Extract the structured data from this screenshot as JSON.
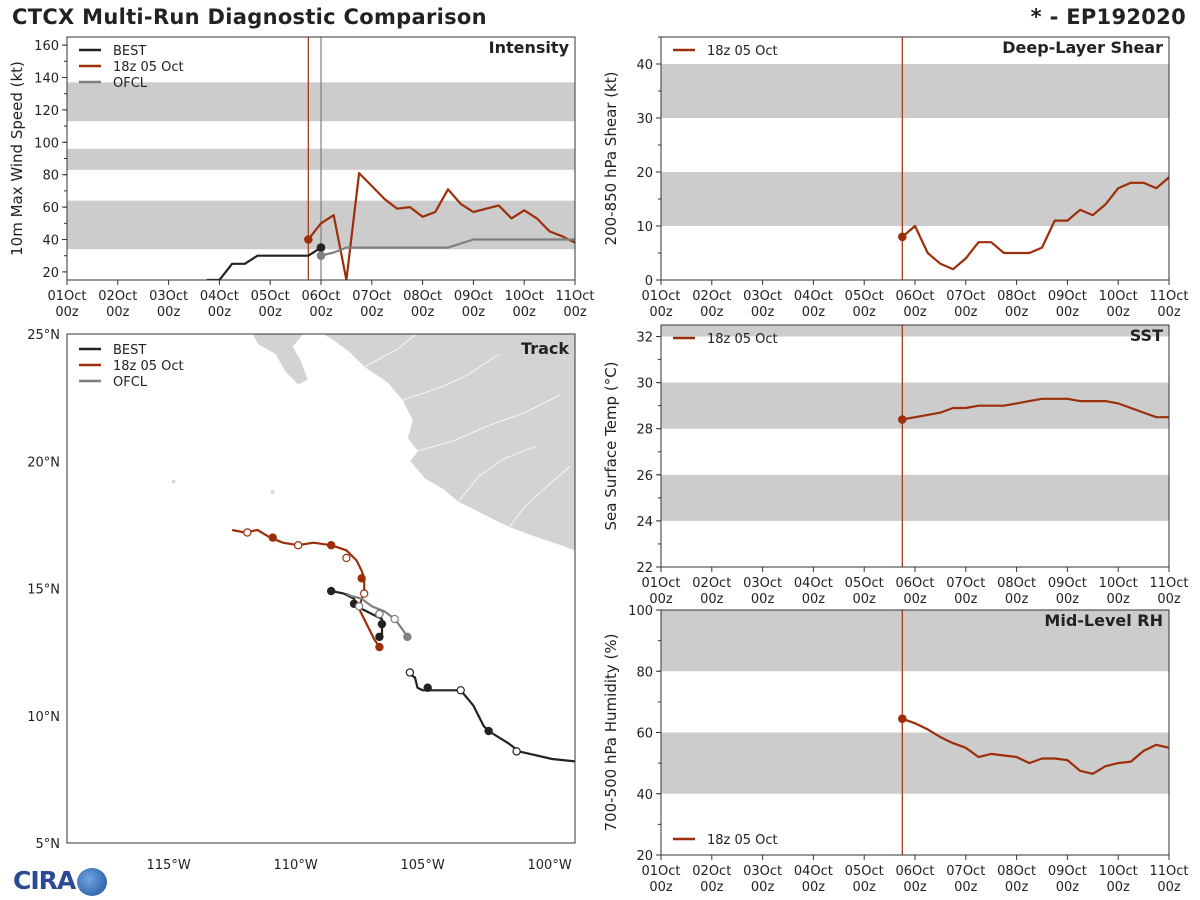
{
  "title": "CTCX Multi-Run Diagnostic Comparison",
  "storm_id": "* - EP192020",
  "logo_text": "CIRA",
  "colors": {
    "best": "#222222",
    "run": "#9c2f0a",
    "ofcl": "#7f7f7f",
    "band": "#cccccc",
    "land": "#d3d3d3"
  },
  "chart_data": [
    {
      "id": "intensity",
      "type": "line",
      "title": "Intensity",
      "ylabel": "10m Max Wind Speed (kt)",
      "xlim": [
        0,
        10
      ],
      "ylim": [
        15,
        165
      ],
      "yticks": [
        20,
        40,
        60,
        80,
        100,
        120,
        140,
        160
      ],
      "bands": [
        [
          34,
          64
        ],
        [
          83,
          96
        ],
        [
          113,
          137
        ]
      ],
      "vlines": [
        {
          "x": 4.75,
          "series": "run"
        },
        {
          "x": 5.0,
          "series": "ofcl"
        }
      ],
      "legend": [
        "BEST",
        "18z 05 Oct",
        "OFCL"
      ],
      "series": [
        {
          "name": "BEST",
          "key": "best",
          "x": [
            2.75,
            3.0,
            3.25,
            3.5,
            3.75,
            4.0,
            4.25,
            4.5,
            4.75,
            5.0
          ],
          "y": [
            15,
            15,
            25,
            25,
            30,
            30,
            30,
            30,
            30,
            35
          ],
          "markers": [
            {
              "x": 5.0,
              "y": 35,
              "style": "filled"
            }
          ]
        },
        {
          "name": "18z 05 Oct",
          "key": "run",
          "x": [
            4.75,
            5.0,
            5.25,
            5.5,
            5.75,
            6.0,
            6.25,
            6.5,
            6.75,
            7.0,
            7.25,
            7.5,
            7.75,
            8.0,
            8.25,
            8.5,
            8.75,
            9.0,
            9.25,
            9.5,
            9.75,
            10.0
          ],
          "y": [
            40,
            50,
            55,
            15,
            81,
            73,
            65,
            59,
            60,
            54,
            57,
            71,
            62,
            57,
            59,
            61,
            53,
            58,
            53,
            45,
            42,
            38
          ],
          "markers": [
            {
              "x": 4.75,
              "y": 40,
              "style": "filled"
            }
          ]
        },
        {
          "name": "OFCL",
          "key": "ofcl",
          "x": [
            5.0,
            5.25,
            5.5,
            6.0,
            6.5,
            7.0,
            7.5,
            8.0,
            8.5,
            9.0,
            9.5,
            10.0
          ],
          "y": [
            30,
            32,
            35,
            35,
            35,
            35,
            35,
            40,
            40,
            40,
            40,
            40
          ],
          "markers": [
            {
              "x": 5.0,
              "y": 30,
              "style": "filled"
            }
          ]
        }
      ]
    },
    {
      "id": "shear",
      "type": "line",
      "title": "Deep-Layer Shear",
      "ylabel": "200-850 hPa Shear (kt)",
      "xlim": [
        0,
        10
      ],
      "ylim": [
        0,
        45
      ],
      "yticks": [
        0,
        10,
        20,
        30,
        40
      ],
      "bands": [
        [
          10,
          20
        ],
        [
          30,
          40
        ]
      ],
      "vlines": [
        {
          "x": 4.75,
          "series": "run"
        }
      ],
      "legend": [
        "18z 05 Oct"
      ],
      "series": [
        {
          "name": "18z 05 Oct",
          "key": "run",
          "x": [
            4.75,
            5.0,
            5.25,
            5.5,
            5.75,
            6.0,
            6.25,
            6.5,
            6.75,
            7.0,
            7.25,
            7.5,
            7.75,
            8.0,
            8.25,
            8.5,
            8.75,
            9.0,
            9.25,
            9.5,
            9.75,
            10.0
          ],
          "y": [
            8,
            10,
            5,
            3,
            2,
            4,
            7,
            7,
            5,
            5,
            5,
            6,
            11,
            11,
            13,
            12,
            14,
            17,
            18,
            18,
            17,
            19
          ],
          "markers": [
            {
              "x": 4.75,
              "y": 8,
              "style": "filled"
            }
          ]
        }
      ]
    },
    {
      "id": "sst",
      "type": "line",
      "title": "SST",
      "ylabel": "Sea Surface Temp (°C)",
      "xlim": [
        0,
        10
      ],
      "ylim": [
        22,
        32.5
      ],
      "yticks": [
        22,
        24,
        26,
        28,
        30,
        32
      ],
      "bands": [
        [
          24,
          26
        ],
        [
          28,
          30
        ],
        [
          32,
          33
        ]
      ],
      "vlines": [
        {
          "x": 4.75,
          "series": "run"
        }
      ],
      "legend": [
        "18z 05 Oct"
      ],
      "series": [
        {
          "name": "18z 05 Oct",
          "key": "run",
          "x": [
            4.75,
            5.0,
            5.25,
            5.5,
            5.75,
            6.0,
            6.25,
            6.5,
            6.75,
            7.0,
            7.25,
            7.5,
            7.75,
            8.0,
            8.25,
            8.5,
            8.75,
            9.0,
            9.25,
            9.5,
            9.75,
            10.0
          ],
          "y": [
            28.4,
            28.5,
            28.6,
            28.7,
            28.9,
            28.9,
            29.0,
            29.0,
            29.0,
            29.1,
            29.2,
            29.3,
            29.3,
            29.3,
            29.2,
            29.2,
            29.2,
            29.1,
            28.9,
            28.7,
            28.5,
            28.5
          ],
          "markers": [
            {
              "x": 4.75,
              "y": 28.4,
              "style": "filled"
            }
          ]
        }
      ]
    },
    {
      "id": "rh",
      "type": "line",
      "title": "Mid-Level RH",
      "ylabel": "700-500 hPa Humidity (%)",
      "xlim": [
        0,
        10
      ],
      "ylim": [
        20,
        100
      ],
      "yticks": [
        20,
        40,
        60,
        80,
        100
      ],
      "bands": [
        [
          40,
          60
        ],
        [
          80,
          100
        ]
      ],
      "vlines": [
        {
          "x": 4.75,
          "series": "run"
        }
      ],
      "legend": [
        "18z 05 Oct"
      ],
      "legend_position": "bottom-left",
      "series": [
        {
          "name": "18z 05 Oct",
          "key": "run",
          "x": [
            4.75,
            5.0,
            5.25,
            5.5,
            5.75,
            6.0,
            6.25,
            6.5,
            6.75,
            7.0,
            7.25,
            7.5,
            7.75,
            8.0,
            8.25,
            8.5,
            8.75,
            9.0,
            9.25,
            9.5,
            9.75,
            10.0
          ],
          "y": [
            64.5,
            63,
            61,
            58.5,
            56.5,
            55,
            52,
            53,
            52.5,
            52,
            50,
            51.5,
            51.5,
            51,
            47.5,
            46.5,
            49,
            50,
            50.5,
            54,
            56,
            55
          ],
          "markers": [
            {
              "x": 4.75,
              "y": 64.5,
              "style": "filled"
            }
          ]
        }
      ]
    },
    {
      "id": "track",
      "type": "line",
      "title": "Track",
      "xlim": [
        -119,
        -99
      ],
      "ylim": [
        5,
        25
      ],
      "xticks": [
        -115,
        -110,
        -105,
        -100
      ],
      "yticks": [
        5,
        10,
        15,
        20,
        25
      ],
      "xtick_labels": [
        "115°W",
        "110°W",
        "105°W",
        "100°W"
      ],
      "ytick_labels": [
        "5°N",
        "10°N",
        "15°N",
        "20°N",
        "25°N"
      ],
      "legend": [
        "BEST",
        "18z 05 Oct",
        "OFCL"
      ],
      "series": [
        {
          "name": "BEST",
          "key": "best",
          "lon": [
            -98.9,
            -99.9,
            -101.2,
            -101.6,
            -102.4,
            -102.6,
            -103.0,
            -103.5,
            -104.0,
            -104.5,
            -105.0,
            -105.2,
            -105.3,
            -105.6
          ],
          "lat": [
            8.2,
            8.3,
            8.6,
            8.9,
            9.4,
            9.6,
            10.4,
            11.0,
            11.0,
            11.0,
            11.0,
            11.1,
            11.5,
            11.7
          ],
          "markers": [
            {
              "lon": -101.3,
              "lat": 8.6,
              "style": "open"
            },
            {
              "lon": -102.4,
              "lat": 9.4,
              "style": "filled"
            },
            {
              "lon": -103.5,
              "lat": 11.0,
              "style": "open"
            },
            {
              "lon": -104.8,
              "lat": 11.1,
              "style": "filled"
            },
            {
              "lon": -105.5,
              "lat": 11.7,
              "style": "open"
            }
          ]
        },
        {
          "name": "BEST-2",
          "key": "best",
          "lon": [
            -108.6,
            -108.1,
            -107.7,
            -107.6,
            -107.2,
            -107.0,
            -106.6,
            -106.6,
            -106.6,
            -106.7
          ],
          "lat": [
            14.9,
            14.8,
            14.6,
            14.3,
            14.1,
            14.0,
            13.8,
            13.2,
            13.2,
            13.1
          ],
          "markers": [
            {
              "lon": -108.6,
              "lat": 14.9,
              "style": "filled"
            },
            {
              "lon": -107.7,
              "lat": 14.4,
              "style": "filled"
            },
            {
              "lon": -106.7,
              "lat": 14.0,
              "style": "filled"
            },
            {
              "lon": -106.6,
              "lat": 13.6,
              "style": "filled"
            },
            {
              "lon": -106.7,
              "lat": 13.1,
              "style": "filled"
            }
          ]
        },
        {
          "name": "18z 05 Oct",
          "key": "run",
          "lon": [
            -112.5,
            -112.0,
            -111.5,
            -111.0,
            -110.5,
            -109.9,
            -109.3,
            -108.6,
            -108.0,
            -107.6,
            -107.4,
            -107.3,
            -107.3,
            -107.4,
            -107.5,
            -107.2,
            -106.9,
            -106.7
          ],
          "lat": [
            17.3,
            17.2,
            17.3,
            17.0,
            16.8,
            16.7,
            16.8,
            16.7,
            16.5,
            16.1,
            15.7,
            15.4,
            14.8,
            14.6,
            14.2,
            13.6,
            13.0,
            12.7
          ],
          "markers": [
            {
              "lon": -111.9,
              "lat": 17.2,
              "style": "open"
            },
            {
              "lon": -110.9,
              "lat": 17.0,
              "style": "filled"
            },
            {
              "lon": -109.9,
              "lat": 16.7,
              "style": "open"
            },
            {
              "lon": -108.6,
              "lat": 16.7,
              "style": "filled"
            },
            {
              "lon": -108.0,
              "lat": 16.2,
              "style": "open"
            },
            {
              "lon": -107.4,
              "lat": 15.4,
              "style": "filled"
            },
            {
              "lon": -107.3,
              "lat": 14.8,
              "style": "open"
            },
            {
              "lon": -106.7,
              "lat": 12.7,
              "style": "run"
            }
          ]
        },
        {
          "name": "OFCL",
          "key": "ofcl",
          "lon": [
            -105.6,
            -105.8,
            -106.1,
            -106.5,
            -107.0,
            -107.4,
            -107.8,
            -108.0
          ],
          "lat": [
            13.1,
            13.4,
            13.8,
            14.1,
            14.3,
            14.6,
            14.7,
            14.8
          ],
          "markers": [
            {
              "lon": -105.6,
              "lat": 13.1,
              "style": "filled"
            },
            {
              "lon": -106.1,
              "lat": 13.8,
              "style": "open"
            },
            {
              "lon": -106.7,
              "lat": 14.0,
              "style": "open"
            },
            {
              "lon": -107.5,
              "lat": 14.3,
              "style": "open"
            }
          ]
        }
      ]
    }
  ],
  "time_axis": {
    "ticks": [
      0,
      1,
      2,
      3,
      4,
      5,
      6,
      7,
      8,
      9,
      10
    ],
    "labels_top": [
      "01Oct",
      "02Oct",
      "03Oct",
      "04Oct",
      "05Oct",
      "06Oct",
      "07Oct",
      "08Oct",
      "09Oct",
      "10Oct",
      "11Oct"
    ],
    "labels_bottom": [
      "00z",
      "00z",
      "00z",
      "00z",
      "00z",
      "00z",
      "00z",
      "00z",
      "00z",
      "00z",
      "00z"
    ]
  }
}
